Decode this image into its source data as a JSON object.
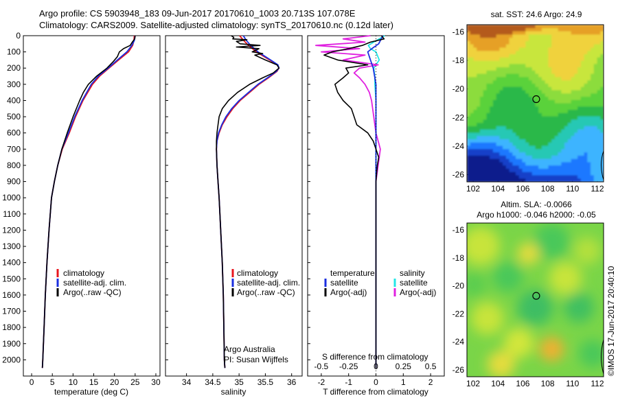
{
  "header": {
    "line1": "Argo profile: CS 5903948_183 09-Jun-2017 20170610_1003 20.713S 107.078E",
    "line2": "Climatology: CARS2009. Satellite-adjusted climatology: synTS_20170610.nc (0.12d later)"
  },
  "side_label": "©IMOS 17-Jun-2017 20:40:10",
  "maps": {
    "sst_title": "sat. SST: 24.6 Argo: 24.9",
    "sla_title1": "Altim. SLA: -0.0066",
    "sla_title2": "Argo h1000: -0.046 h2000: -0.05"
  },
  "colors": {
    "climatology": "#e8141c",
    "satellite": "#1a2ee0",
    "argo": "#000000",
    "sal_satellite": "#22e6e6",
    "sal_argo": "#e020e0"
  },
  "chart_data": [
    {
      "type": "line",
      "xlabel": "temperature (deg C)",
      "ylabel": "",
      "xlim": [
        -2,
        31
      ],
      "ylim": [
        2100,
        0
      ],
      "xticks": [
        0,
        5,
        10,
        15,
        20,
        25,
        30
      ],
      "yticks": [
        0,
        100,
        200,
        300,
        400,
        500,
        600,
        700,
        800,
        900,
        1000,
        1100,
        1200,
        1300,
        1400,
        1500,
        1600,
        1700,
        1800,
        1900,
        2000
      ],
      "legend": [
        "climatology",
        "satellite-adj. clim.",
        "Argo(..raw -QC)"
      ],
      "series": [
        {
          "name": "climatology",
          "depth": [
            0,
            30,
            60,
            100,
            150,
            200,
            250,
            300,
            400,
            500,
            600,
            700,
            800,
            900,
            1000,
            1200,
            1400,
            1600,
            1800,
            2000,
            2050
          ],
          "values": [
            24.8,
            24.7,
            24.4,
            23.4,
            21.0,
            18.7,
            16.4,
            14.7,
            12.4,
            10.6,
            9.1,
            7.4,
            6.3,
            5.5,
            4.8,
            4.2,
            3.7,
            3.3,
            3.0,
            2.7,
            2.6
          ]
        },
        {
          "name": "satellite-adj. clim.",
          "depth": [
            0,
            30,
            60,
            100,
            150,
            200,
            250,
            300,
            400,
            500,
            600,
            700,
            800,
            900,
            1000,
            1200,
            1400,
            1600,
            1800,
            2000,
            2050
          ],
          "values": [
            25.0,
            24.8,
            24.2,
            23.0,
            20.7,
            18.5,
            16.1,
            14.4,
            12.2,
            10.4,
            8.9,
            7.3,
            6.3,
            5.5,
            4.8,
            4.2,
            3.7,
            3.3,
            3.0,
            2.7,
            2.6
          ]
        },
        {
          "name": "Argo(..raw -QC)",
          "depth": [
            0,
            20,
            40,
            60,
            80,
            100,
            130,
            160,
            200,
            250,
            300,
            350,
            400,
            500,
            600,
            700,
            800,
            900,
            1000,
            1200,
            1400,
            1600,
            1800,
            2000,
            2050
          ],
          "values": [
            25.0,
            24.9,
            24.3,
            23.8,
            22.2,
            21.2,
            20.7,
            19.7,
            18.2,
            15.7,
            13.7,
            12.5,
            11.6,
            10.0,
            8.6,
            7.3,
            6.3,
            5.5,
            4.8,
            4.2,
            3.7,
            3.3,
            3.0,
            2.7,
            2.6
          ]
        }
      ]
    },
    {
      "type": "line",
      "xlabel": "salinity",
      "ylabel": "",
      "xlim": [
        33.6,
        36.2
      ],
      "ylim": [
        2100,
        0
      ],
      "xticks": [
        34,
        34.5,
        35,
        35.5,
        36
      ],
      "legend": [
        "climatology",
        "satellite-adj. clim.",
        "Argo(..raw -QC)"
      ],
      "annotations": [
        "Argo Australia",
        "PI: Susan Wijffels"
      ],
      "series": [
        {
          "name": "climatology",
          "depth": [
            0,
            30,
            60,
            100,
            150,
            180,
            200,
            220,
            260,
            300,
            350,
            400,
            450,
            500,
            550,
            600,
            650,
            700,
            800,
            900,
            1000,
            1200,
            1400,
            1600,
            1800,
            2000,
            2050
          ],
          "values": [
            35.01,
            35.09,
            35.18,
            35.33,
            35.58,
            35.73,
            35.76,
            35.72,
            35.56,
            35.38,
            35.2,
            35.02,
            34.88,
            34.77,
            34.68,
            34.62,
            34.58,
            34.57,
            34.58,
            34.6,
            34.62,
            34.65,
            34.68,
            34.7,
            34.71,
            34.72,
            34.73
          ]
        },
        {
          "name": "satellite-adj. clim.",
          "depth": [
            0,
            30,
            60,
            100,
            150,
            180,
            200,
            220,
            260,
            300,
            350,
            400,
            450,
            500,
            550,
            600,
            650,
            700,
            800,
            900,
            1000,
            1200,
            1400,
            1600,
            1800,
            2000,
            2050
          ],
          "values": [
            35.08,
            35.14,
            35.22,
            35.36,
            35.6,
            35.74,
            35.76,
            35.71,
            35.54,
            35.36,
            35.18,
            35.0,
            34.86,
            34.75,
            34.67,
            34.61,
            34.58,
            34.57,
            34.58,
            34.6,
            34.62,
            34.65,
            34.68,
            34.7,
            34.71,
            34.72,
            34.73
          ]
        },
        {
          "name": "Argo(..raw -QC)",
          "depth": [
            0,
            10,
            20,
            25,
            35,
            50,
            60,
            70,
            80,
            100,
            110,
            120,
            150,
            180,
            200,
            230,
            260,
            300,
            350,
            400,
            450,
            500,
            550,
            600,
            650,
            700,
            800,
            900,
            1000,
            1200,
            1400,
            1600,
            1800,
            2000,
            2050
          ],
          "values": [
            34.85,
            34.9,
            34.88,
            35.15,
            34.95,
            35.02,
            35.4,
            34.95,
            35.38,
            35.25,
            35.45,
            35.3,
            35.5,
            35.72,
            35.76,
            35.65,
            35.45,
            35.2,
            34.97,
            34.8,
            34.68,
            34.62,
            34.6,
            34.58,
            34.57,
            34.57,
            34.58,
            34.6,
            34.62,
            34.65,
            34.68,
            34.7,
            34.71,
            34.72,
            34.73
          ]
        }
      ]
    },
    {
      "type": "line",
      "xlabel": "T difference from climatology",
      "top_label": "S difference from climatology",
      "ylim": [
        2100,
        0
      ],
      "xlim": [
        -2.5,
        2.5
      ],
      "xticks": [
        -2,
        -1,
        0,
        1,
        2
      ],
      "top_ticks": [
        "-0.5",
        "-0.25",
        "0",
        "0.25",
        "0.5"
      ],
      "top_tick_values": [
        -0.5,
        -0.25,
        0,
        0.25,
        0.5
      ],
      "legend_temperature": [
        "temperature",
        "satellite",
        "Argo(-adj)"
      ],
      "legend_salinity": [
        "salinity",
        "satellite",
        "Argo(-adj)"
      ],
      "series": [
        {
          "name": "satellite",
          "depth": [
            0,
            50,
            80,
            100,
            150,
            200,
            300,
            400,
            500,
            600,
            700,
            800,
            1000,
            1200,
            1500,
            1800,
            2050
          ],
          "values": [
            0.25,
            0.1,
            -0.15,
            -0.3,
            -0.2,
            -0.1,
            0.0,
            0.0,
            0.0,
            0.0,
            0.0,
            0.0,
            0.0,
            0.0,
            0.0,
            0.0,
            0.0
          ]
        },
        {
          "name": "Argo(-adj)",
          "depth": [
            0,
            20,
            40,
            60,
            80,
            100,
            120,
            150,
            180,
            200,
            230,
            260,
            300,
            350,
            400,
            450,
            500,
            550,
            600,
            650,
            700,
            750,
            800,
            900,
            1000,
            1200,
            1500,
            1800,
            2050
          ],
          "values": [
            0.2,
            0.3,
            -0.2,
            -0.5,
            -1.0,
            -1.6,
            -1.9,
            -1.4,
            -0.3,
            -1.1,
            -1.0,
            -1.2,
            -1.5,
            -1.4,
            -1.2,
            -0.9,
            -0.8,
            -0.7,
            -0.3,
            -0.1,
            0.0,
            0.1,
            0.05,
            0.0,
            0.0,
            0.0,
            0.0,
            0.0,
            0.0
          ]
        },
        {
          "name": "salinity satellite",
          "depth": [
            0,
            20,
            40,
            60,
            80,
            100,
            150,
            200,
            250,
            300,
            400,
            500,
            600,
            700,
            800,
            1000,
            1500,
            2050
          ],
          "values": [
            0.08,
            0.03,
            -0.02,
            -0.07,
            -0.05,
            0.0,
            0.03,
            -0.02,
            -0.01,
            -0.01,
            0.0,
            0.0,
            0.0,
            0.0,
            0.0,
            0.0,
            0.0,
            0.0
          ]
        },
        {
          "name": "salinity Argo(-adj)",
          "depth": [
            0,
            20,
            40,
            60,
            80,
            100,
            120,
            150,
            180,
            200,
            230,
            260,
            300,
            350,
            400,
            500,
            600,
            700,
            800,
            900,
            1000,
            1200,
            1500,
            2050
          ],
          "values": [
            -0.05,
            -0.3,
            -0.1,
            -0.55,
            -0.15,
            -0.5,
            -0.1,
            -0.3,
            0.02,
            -0.15,
            -0.2,
            -0.15,
            -0.1,
            -0.06,
            -0.04,
            -0.02,
            0.0,
            0.04,
            0.02,
            0.0,
            0.0,
            0.0,
            0.0,
            0.0
          ]
        }
      ]
    },
    {
      "type": "heatmap",
      "title": "sat. SST: 24.6 Argo: 24.9",
      "xticks": [
        102,
        104,
        106,
        108,
        110,
        112
      ],
      "yticks": [
        -16,
        -18,
        -20,
        -22,
        -24,
        -26
      ],
      "xlim": [
        101.5,
        112.5
      ],
      "ylim": [
        -26.5,
        -15.5
      ],
      "marker": {
        "lon": 107.078,
        "lat": -20.713
      }
    },
    {
      "type": "heatmap",
      "title": "Altim. SLA: -0.0066",
      "xticks": [
        102,
        104,
        106,
        108,
        110,
        112
      ],
      "yticks": [
        -16,
        -18,
        -20,
        -22,
        -24,
        -26
      ],
      "xlim": [
        101.5,
        112.5
      ],
      "ylim": [
        -26.5,
        -15.5
      ],
      "marker": {
        "lon": 107.078,
        "lat": -20.713
      }
    }
  ]
}
